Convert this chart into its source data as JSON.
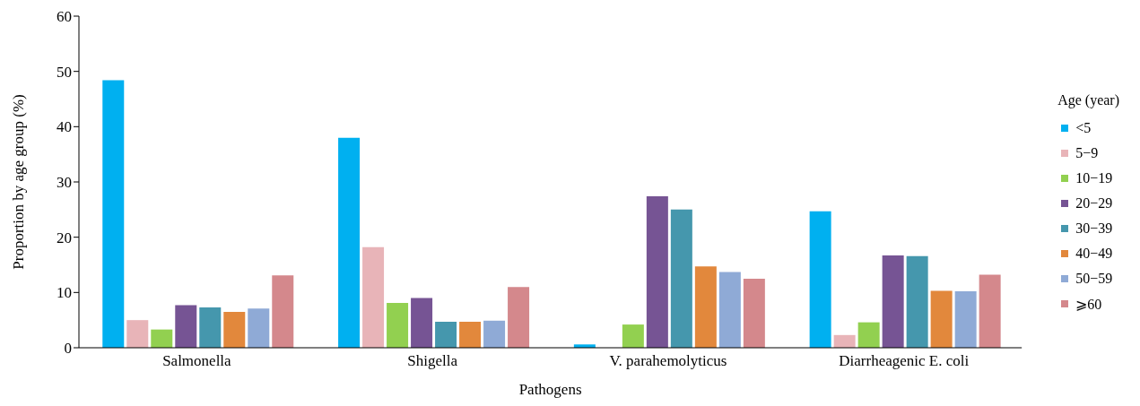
{
  "chart_data": {
    "type": "bar",
    "xlabel": "Pathogens",
    "ylabel": "Proportion by age group (%)",
    "legend_title": "Age (year)",
    "categories": [
      "Salmonella",
      "Shigella",
      "V. parahemolyticus",
      "Diarrheagenic E. coli"
    ],
    "series": [
      {
        "name": "<5",
        "color": "#00b0f0",
        "values": [
          48.4,
          38.0,
          0.6,
          24.7
        ]
      },
      {
        "name": "5−9",
        "color": "#e8b4b8",
        "values": [
          5.0,
          18.2,
          0,
          2.3
        ]
      },
      {
        "name": "10−19",
        "color": "#92d050",
        "values": [
          3.3,
          8.1,
          4.2,
          4.6
        ]
      },
      {
        "name": "20−29",
        "color": "#765494",
        "values": [
          7.7,
          9.0,
          27.4,
          16.7
        ]
      },
      {
        "name": "30−39",
        "color": "#4597ad",
        "values": [
          7.3,
          4.7,
          25.0,
          16.6
        ]
      },
      {
        "name": "40−49",
        "color": "#e2883c",
        "values": [
          6.5,
          4.7,
          14.7,
          10.3
        ]
      },
      {
        "name": "50−59",
        "color": "#8faad6",
        "values": [
          7.1,
          4.9,
          13.7,
          10.2
        ]
      },
      {
        "name": "⩾60",
        "color": "#d4888c",
        "values": [
          13.1,
          11.0,
          12.5,
          13.2
        ]
      }
    ],
    "ylim": [
      0,
      60
    ],
    "yticks": [
      0,
      10,
      20,
      30,
      40,
      50,
      60
    ],
    "grid": false,
    "legend": "right"
  }
}
